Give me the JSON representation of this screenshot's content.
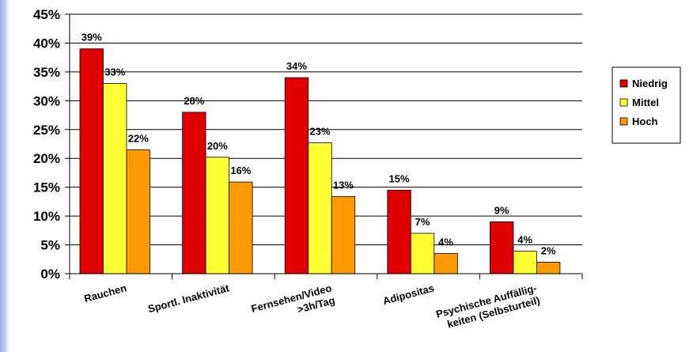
{
  "chart_data": {
    "type": "bar",
    "categories": [
      [
        "Rauchen"
      ],
      [
        "Sportl. Inaktivität"
      ],
      [
        "Fernsehen/Video",
        ">3h/Tag"
      ],
      [
        "Adipositas"
      ],
      [
        "Psychische Auffällig-",
        "keiten (Selbsturteil)"
      ]
    ],
    "series": [
      {
        "name": "Niedrig",
        "color": "#e00000",
        "values": [
          39,
          28,
          34,
          14.5,
          9
        ],
        "labels": [
          "39%",
          "28%",
          "34%",
          "15%",
          "9%"
        ]
      },
      {
        "name": "Mittel",
        "color": "#ffff33",
        "values": [
          33,
          20.2,
          22.7,
          7,
          3.9
        ],
        "labels": [
          "33%",
          "20%",
          "23%",
          "7%",
          "4%"
        ]
      },
      {
        "name": "Hoch",
        "color": "#ff9900",
        "values": [
          21.5,
          15.9,
          13.4,
          3.5,
          2
        ],
        "labels": [
          "22%",
          "16%",
          "13%",
          "4%",
          "2%"
        ]
      }
    ],
    "ylim": [
      0,
      45
    ],
    "yticks": [
      0,
      5,
      10,
      15,
      20,
      25,
      30,
      35,
      40,
      45
    ],
    "ytick_labels": [
      "0%",
      "5%",
      "10%",
      "15%",
      "20%",
      "25%",
      "30%",
      "35%",
      "40%",
      "45%"
    ],
    "grid": true,
    "legend_position": "right"
  }
}
